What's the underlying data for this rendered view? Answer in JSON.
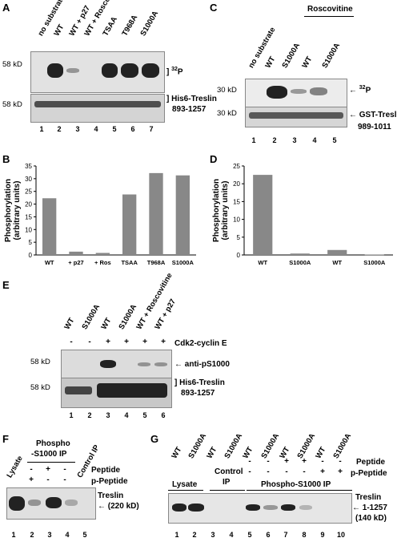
{
  "panels": {
    "A": {
      "letter": "A",
      "lanes": [
        "no substrate",
        "WT",
        "WT + p27",
        "WT + Roscovitine",
        "TSAA",
        "T968A",
        "S1000A"
      ],
      "marker_top": "58 kD",
      "marker_bottom": "58 kD",
      "label_top": "32P",
      "label_bottom_1": "His6-Treslin",
      "label_bottom_2": "893-1257",
      "lane_numbers": [
        "1",
        "2",
        "3",
        "4",
        "5",
        "6",
        "7"
      ]
    },
    "B": {
      "letter": "B"
    },
    "C": {
      "letter": "C",
      "group_label": "Roscovitine",
      "lanes": [
        "no substrate",
        "WT",
        "S1000A",
        "WT",
        "S1000A"
      ],
      "marker_top": "30 kD",
      "marker_bottom": "30 kD",
      "label_top": "32P",
      "label_bottom_1": "GST-Treslin",
      "label_bottom_2": "989-1011",
      "lane_numbers": [
        "1",
        "2",
        "3",
        "4",
        "5"
      ]
    },
    "D": {
      "letter": "D"
    },
    "E": {
      "letter": "E",
      "lanes": [
        "WT",
        "S1000A",
        "WT",
        "S1000A",
        "WT + Roscovitine",
        "WT + p27"
      ],
      "signs": [
        "-",
        "-",
        "+",
        "+",
        "+",
        "+"
      ],
      "sign_label": "Cdk2-cyclin E",
      "marker_top": "58 kD",
      "marker_bottom": "58 kD",
      "label_top": "anti-pS1000",
      "label_bottom_1": "His6-Treslin",
      "label_bottom_2": "893-1257",
      "lane_numbers": [
        "1",
        "2",
        "3",
        "4",
        "5",
        "6"
      ]
    },
    "F": {
      "letter": "F",
      "lanes_lysate": "Lysate",
      "ip_1": "Phospho",
      "ip_2": "-S1000 IP",
      "control": "Control IP",
      "peptide_row": [
        "-",
        "+",
        "-"
      ],
      "ppeptide_row": [
        "+",
        "-",
        "-"
      ],
      "peptide_label": "Peptide",
      "ppeptide_label": "p-Peptide",
      "label_1": "Treslin",
      "label_2": "(220 kD)",
      "lane_numbers": [
        "1",
        "2",
        "3",
        "4",
        "5"
      ]
    },
    "G": {
      "letter": "G",
      "lanes": [
        "WT",
        "S1000A",
        "WT",
        "S1000A",
        "WT",
        "S1000A",
        "WT",
        "S1000A",
        "WT",
        "S1000A"
      ],
      "peptide_row": [
        "-",
        "-",
        "+",
        "+",
        "-",
        "-"
      ],
      "ppeptide_row": [
        "-",
        "-",
        "-",
        "-",
        "+",
        "+"
      ],
      "peptide_label": "Peptide",
      "ppeptide_label": "p-Peptide",
      "group_lysate": "Lysate",
      "group_control_1": "Control",
      "group_control_2": "IP",
      "group_ip": "Phospho-S1000 IP",
      "label_1": "Treslin",
      "label_2": "1-1257",
      "label_3": "(140 kD)",
      "lane_numbers": [
        "1",
        "2",
        "3",
        "4",
        "5",
        "6",
        "7",
        "8",
        "9",
        "10"
      ]
    }
  },
  "chart_data": [
    {
      "panel": "B",
      "type": "bar",
      "categories": [
        "WT",
        "+ p27",
        "+ Ros",
        "TSAA",
        "T968A",
        "S1000A"
      ],
      "values": [
        22.3,
        1.3,
        0.8,
        23.8,
        32.2,
        31.3
      ],
      "ylabel": "Phosphorylation (arbitrary units)",
      "ylim": [
        0,
        35
      ],
      "yticks": [
        0,
        5,
        10,
        15,
        20,
        25,
        30,
        35
      ],
      "color": "#888888"
    },
    {
      "panel": "D",
      "type": "bar",
      "categories": [
        "WT",
        "S1000A",
        "WT",
        "S1000A"
      ],
      "values": [
        22.5,
        0.4,
        1.4,
        0.1
      ],
      "ylabel": "Phosphorylation (arbitrary units)",
      "ylim": [
        0,
        25
      ],
      "yticks": [
        0,
        5,
        10,
        15,
        20,
        25
      ],
      "color": "#888888"
    }
  ]
}
